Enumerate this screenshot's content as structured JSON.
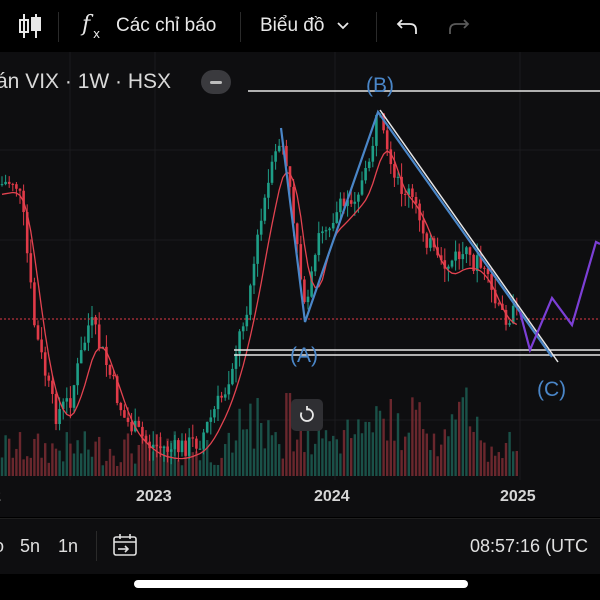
{
  "toolbar": {
    "indicators_label": "Các chỉ báo",
    "chart_type_label": "Biểu đồ"
  },
  "chart": {
    "symbol_label": "án VIX · 1W · HSX",
    "wave_labels": {
      "A": "(A)",
      "B": "(B)",
      "C": "(C)"
    },
    "x_ticks": [
      "2023",
      "2024",
      "2025"
    ]
  },
  "bottombar": {
    "timeframes": [
      "o",
      "5n",
      "1n"
    ],
    "time": "08:57:16 (UTC"
  },
  "colors": {
    "up": "#1e9e87",
    "down": "#e03a48",
    "ma": "#e34350",
    "wave": "#4a86c8",
    "projection": "#7c3fd6",
    "background": "#0e0e10"
  },
  "icons": [
    "candles-icon",
    "fx-icon",
    "chevron-down-icon",
    "undo-icon",
    "redo-icon",
    "minus-icon",
    "reset-icon",
    "compare-icon"
  ],
  "chart_data": {
    "type": "candlestick",
    "title": "VIX · 1W · HSX",
    "x": [
      "2023",
      "2024",
      "2025"
    ],
    "annotations": [
      "(A)",
      "(B)",
      "(C)"
    ],
    "grid": true
  }
}
